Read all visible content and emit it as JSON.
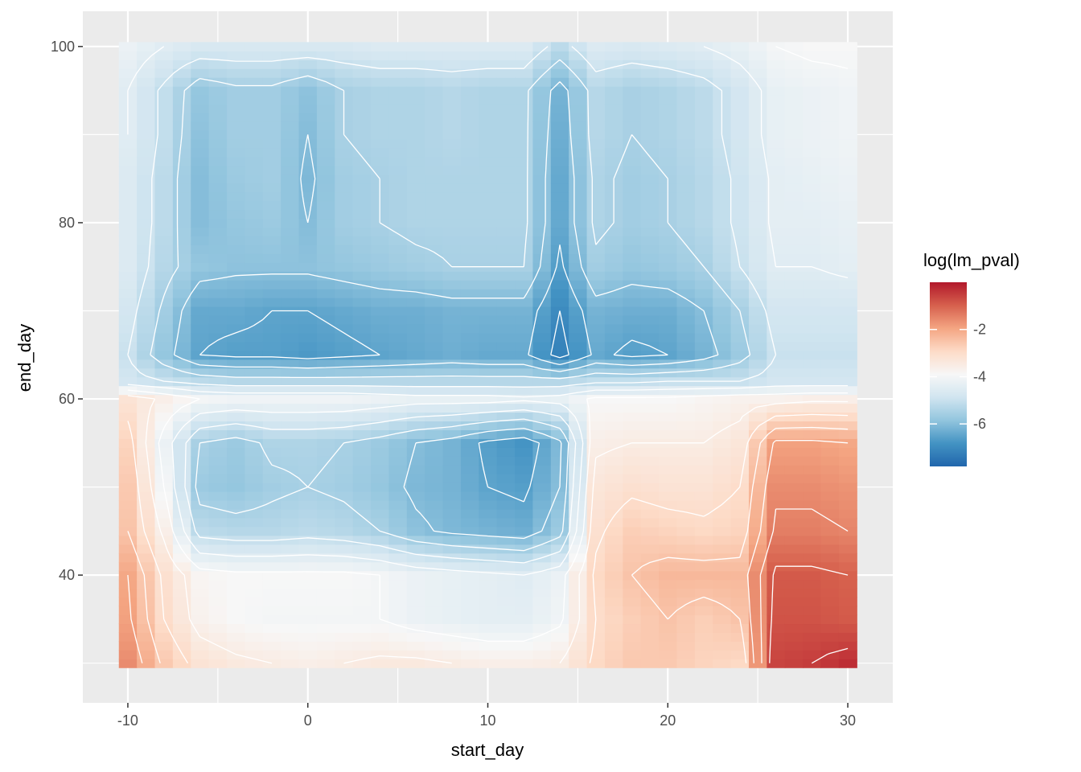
{
  "chart_data": {
    "type": "heatmap",
    "title": "",
    "xlabel": "start_day",
    "ylabel": "end_day",
    "xlim": [
      -12.5,
      32.5
    ],
    "ylim": [
      25.5,
      104
    ],
    "x_ticks": [
      -10,
      0,
      10,
      20,
      30
    ],
    "x_tick_labels": [
      "-10",
      "0",
      "10",
      "20",
      "30"
    ],
    "y_ticks": [
      40,
      60,
      80,
      100
    ],
    "y_tick_labels": [
      "40",
      "60",
      "80",
      "100"
    ],
    "grid": true,
    "panel_background": "#ebebeb",
    "contour_color": "#ffffff",
    "x_range": [
      -10,
      30
    ],
    "y_range": [
      30,
      100
    ],
    "z_approx": {
      "x_breaks": [
        -10,
        -8,
        -6,
        -4,
        -2,
        0,
        2,
        4,
        6,
        8,
        10,
        12,
        14,
        16,
        18,
        20,
        22,
        24,
        26,
        28,
        30
      ],
      "y_breaks": [
        30,
        35,
        40,
        45,
        50,
        55,
        60,
        62,
        65,
        70,
        75,
        80,
        85,
        90,
        95,
        100
      ],
      "rows": [
        [
          -1.6,
          -2.6,
          -3.2,
          -3.4,
          -3.5,
          -3.6,
          -3.5,
          -3.4,
          -3.4,
          -3.5,
          -3.6,
          -3.6,
          -3.5,
          -2.9,
          -2.6,
          -2.6,
          -2.8,
          -2.9,
          -0.6,
          -0.5,
          -0.3
        ],
        [
          -1.9,
          -3.0,
          -3.7,
          -3.9,
          -4.0,
          -4.0,
          -4.0,
          -4.0,
          -4.2,
          -4.3,
          -4.4,
          -4.4,
          -4.1,
          -3.0,
          -2.7,
          -2.5,
          -2.7,
          -2.5,
          -0.8,
          -0.8,
          -0.9
        ],
        [
          -2.0,
          -3.1,
          -3.8,
          -3.9,
          -3.9,
          -3.9,
          -3.9,
          -4.0,
          -4.2,
          -4.3,
          -4.4,
          -4.5,
          -4.2,
          -2.9,
          -2.5,
          -2.3,
          -2.3,
          -2.3,
          -0.9,
          -0.9,
          -1.0
        ],
        [
          -2.5,
          -3.6,
          -5.2,
          -5.3,
          -5.3,
          -5.2,
          -5.3,
          -5.5,
          -5.9,
          -6.1,
          -6.2,
          -6.3,
          -5.7,
          -3.1,
          -2.7,
          -2.8,
          -2.9,
          -2.8,
          -1.4,
          -1.4,
          -1.5
        ],
        [
          -2.6,
          -4.0,
          -5.7,
          -5.8,
          -5.6,
          -5.5,
          -5.6,
          -5.8,
          -6.1,
          -6.2,
          -6.5,
          -6.6,
          -6.0,
          -3.3,
          -3.1,
          -3.2,
          -3.2,
          -3.0,
          -1.6,
          -1.6,
          -1.7
        ],
        [
          -2.8,
          -4.2,
          -5.5,
          -5.7,
          -5.4,
          -5.4,
          -5.5,
          -5.7,
          -6.0,
          -6.2,
          -6.6,
          -6.8,
          -6.1,
          -3.6,
          -3.5,
          -3.5,
          -3.5,
          -3.3,
          -1.9,
          -1.9,
          -2.0
        ],
        [
          -3.2,
          -3.6,
          -4.0,
          -4.1,
          -4.1,
          -4.1,
          -4.1,
          -4.2,
          -4.3,
          -4.3,
          -4.3,
          -4.4,
          -4.3,
          -3.9,
          -3.9,
          -3.9,
          -3.8,
          -3.7,
          -3.7,
          -3.6,
          -3.6
        ],
        [
          -4.8,
          -5.0,
          -5.2,
          -5.3,
          -5.3,
          -5.3,
          -5.3,
          -5.3,
          -5.3,
          -5.3,
          -5.3,
          -5.3,
          -5.3,
          -5.1,
          -5.1,
          -5.0,
          -5.0,
          -5.0,
          -4.8,
          -4.8,
          -4.8
        ],
        [
          -5.0,
          -5.8,
          -6.5,
          -6.6,
          -6.6,
          -6.7,
          -6.6,
          -6.5,
          -6.4,
          -6.3,
          -6.4,
          -6.4,
          -7.2,
          -6.4,
          -6.6,
          -6.5,
          -6.2,
          -5.7,
          -5.0,
          -5.0,
          -5.0
        ],
        [
          -4.8,
          -5.6,
          -6.4,
          -6.4,
          -6.5,
          -6.5,
          -6.4,
          -6.3,
          -6.3,
          -6.2,
          -6.2,
          -6.2,
          -7.0,
          -6.2,
          -6.3,
          -6.3,
          -6.0,
          -5.5,
          -4.8,
          -4.8,
          -4.8
        ],
        [
          -4.6,
          -5.3,
          -5.8,
          -5.9,
          -5.9,
          -5.9,
          -5.8,
          -5.7,
          -5.6,
          -5.5,
          -5.5,
          -5.5,
          -6.6,
          -5.6,
          -5.8,
          -5.7,
          -5.5,
          -5.0,
          -4.5,
          -4.5,
          -4.4
        ],
        [
          -4.6,
          -5.2,
          -6.0,
          -5.8,
          -5.7,
          -6.0,
          -5.6,
          -5.5,
          -5.4,
          -5.4,
          -5.4,
          -5.4,
          -6.4,
          -5.4,
          -5.6,
          -5.5,
          -5.3,
          -4.9,
          -4.4,
          -4.4,
          -4.3
        ],
        [
          -4.6,
          -5.2,
          -6.0,
          -5.7,
          -5.6,
          -6.1,
          -5.6,
          -5.5,
          -5.4,
          -5.4,
          -5.4,
          -5.4,
          -6.4,
          -5.4,
          -5.6,
          -5.5,
          -5.3,
          -4.9,
          -4.4,
          -4.3,
          -4.2
        ],
        [
          -4.5,
          -5.1,
          -5.9,
          -5.6,
          -5.6,
          -6.0,
          -5.5,
          -5.4,
          -5.4,
          -5.3,
          -5.4,
          -5.4,
          -6.3,
          -5.3,
          -5.5,
          -5.4,
          -5.2,
          -4.8,
          -4.3,
          -4.2,
          -4.1
        ],
        [
          -4.5,
          -5.1,
          -5.8,
          -5.6,
          -5.6,
          -5.9,
          -5.5,
          -5.4,
          -5.4,
          -5.3,
          -5.4,
          -5.4,
          -6.2,
          -5.3,
          -5.5,
          -5.4,
          -5.2,
          -4.8,
          -4.3,
          -4.2,
          -4.1
        ],
        [
          -4.2,
          -4.5,
          -4.7,
          -4.7,
          -4.7,
          -4.7,
          -4.7,
          -4.6,
          -4.6,
          -4.6,
          -4.6,
          -4.6,
          -5.2,
          -4.6,
          -4.7,
          -4.6,
          -4.5,
          -4.3,
          -4.0,
          -3.9,
          -3.9
        ]
      ]
    },
    "legend": {
      "title": "log(lm_pval)",
      "labels": [
        "-2",
        "-4",
        "-6"
      ],
      "values": [
        -2,
        -4,
        -6
      ],
      "range": [
        -7.8,
        0.0
      ],
      "colors": [
        "#2166ac",
        "#4393c3",
        "#92c5de",
        "#d1e5f0",
        "#f7f7f7",
        "#fddbc7",
        "#f4a582",
        "#d6604d",
        "#b2182b"
      ],
      "placement": "right"
    }
  }
}
